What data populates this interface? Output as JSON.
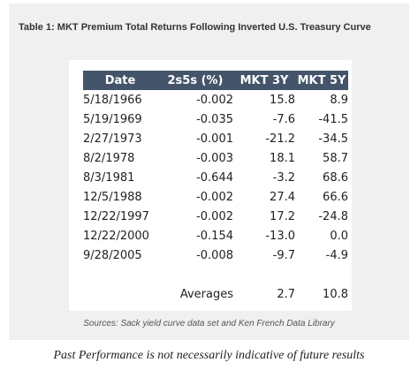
{
  "title": "Table 1: MKT Premium Total Returns Following Inverted U.S. Treasury Curve",
  "colors": {
    "header_bg": "#44546a",
    "panel_bg": "#f0f0f0"
  },
  "table": {
    "headers": {
      "date": "Date",
      "spread": "2s5s (%)",
      "mkt3y": "MKT 3Y",
      "mkt5y": "MKT 5Y"
    },
    "rows": [
      {
        "date": "5/18/1966",
        "spread": "-0.002",
        "mkt3y": "15.8",
        "mkt5y": "8.9"
      },
      {
        "date": "5/19/1969",
        "spread": "-0.035",
        "mkt3y": "-7.6",
        "mkt5y": "-41.5"
      },
      {
        "date": "2/27/1973",
        "spread": "-0.001",
        "mkt3y": "-21.2",
        "mkt5y": "-34.5"
      },
      {
        "date": "8/2/1978",
        "spread": "-0.003",
        "mkt3y": "18.1",
        "mkt5y": "58.7"
      },
      {
        "date": "8/3/1981",
        "spread": "-0.644",
        "mkt3y": "-3.2",
        "mkt5y": "68.6"
      },
      {
        "date": "12/5/1988",
        "spread": "-0.002",
        "mkt3y": "27.4",
        "mkt5y": "66.6"
      },
      {
        "date": "12/22/1997",
        "spread": "-0.002",
        "mkt3y": "17.2",
        "mkt5y": "-24.8"
      },
      {
        "date": "12/22/2000",
        "spread": "-0.154",
        "mkt3y": "-13.0",
        "mkt5y": "0.0"
      },
      {
        "date": "9/28/2005",
        "spread": "-0.008",
        "mkt3y": "-9.7",
        "mkt5y": "-4.9"
      }
    ],
    "averages": {
      "label": "Averages",
      "mkt3y": "2.7",
      "mkt5y": "10.8"
    }
  },
  "source": "Sources: Sack yield curve data set and Ken French Data Library",
  "disclaimer": "Past Performance is not necessarily indicative of future results"
}
